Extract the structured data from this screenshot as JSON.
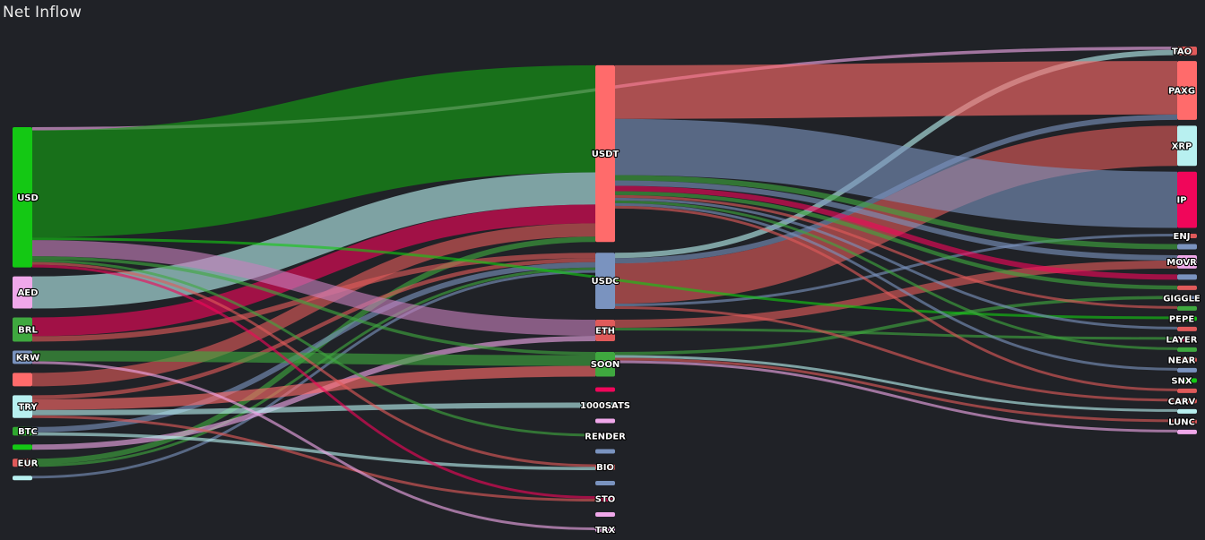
{
  "chart_title": "Net Inflow",
  "chart_data": {
    "type": "sankey",
    "title": "Net Inflow",
    "nodes": [
      {
        "id": "USD",
        "label": "USD",
        "column": 0,
        "color": "#14c814"
      },
      {
        "id": "AED",
        "label": "AED",
        "column": 0,
        "color": "#f0a8ea"
      },
      {
        "id": "BRL",
        "label": "BRL",
        "column": 0,
        "color": "#3fa83f"
      },
      {
        "id": "KRW",
        "label": "KRW",
        "column": 0,
        "color": "#7a93bf"
      },
      {
        "id": "F5",
        "label": "",
        "column": 0,
        "color": "#ff6b6b"
      },
      {
        "id": "TRY",
        "label": "TRY",
        "column": 0,
        "color": "#b8f0f0"
      },
      {
        "id": "BTC",
        "label": "BTC",
        "column": 0,
        "color": "#2fa82f"
      },
      {
        "id": "F8",
        "label": "",
        "column": 0,
        "color": "#14c814"
      },
      {
        "id": "EUR",
        "label": "EUR",
        "column": 0,
        "color": "#e05a5a"
      },
      {
        "id": "F10",
        "label": "",
        "column": 0,
        "color": "#b8f0f0"
      },
      {
        "id": "USDT",
        "label": "USDT",
        "column": 1,
        "color": "#ff6b6b"
      },
      {
        "id": "USDC",
        "label": "USDC",
        "column": 1,
        "color": "#7a93bf"
      },
      {
        "id": "ETH",
        "label": "ETH",
        "column": 1,
        "color": "#e05a5a"
      },
      {
        "id": "SOON",
        "label": "SOON",
        "column": 1,
        "color": "#3fa83f"
      },
      {
        "id": "M5",
        "label": "",
        "column": 1,
        "color": "#f0065a"
      },
      {
        "id": "1000SATS",
        "label": "1000SATS",
        "column": 1,
        "color": "#b8f0f0"
      },
      {
        "id": "M7",
        "label": "",
        "column": 1,
        "color": "#f0a8ea"
      },
      {
        "id": "RENDER",
        "label": "RENDER",
        "column": 1,
        "color": "#3fa83f"
      },
      {
        "id": "M9",
        "label": "",
        "column": 1,
        "color": "#7a93bf"
      },
      {
        "id": "BIO",
        "label": "BIO",
        "column": 1,
        "color": "#e05a5a"
      },
      {
        "id": "M11",
        "label": "",
        "column": 1,
        "color": "#7a93bf"
      },
      {
        "id": "STO",
        "label": "STO",
        "column": 1,
        "color": "#f0065a"
      },
      {
        "id": "M13",
        "label": "",
        "column": 1,
        "color": "#f0a8ea"
      },
      {
        "id": "TRX",
        "label": "TRX",
        "column": 1,
        "color": "#f0a8ea"
      },
      {
        "id": "TAO",
        "label": "TAO",
        "column": 2,
        "color": "#e05a5a"
      },
      {
        "id": "PAXG",
        "label": "PAXG",
        "column": 2,
        "color": "#ff6b6b"
      },
      {
        "id": "XRP",
        "label": "XRP",
        "column": 2,
        "color": "#b8f0f0"
      },
      {
        "id": "IP",
        "label": "IP",
        "column": 2,
        "color": "#f0065a"
      },
      {
        "id": "ENJ",
        "label": "ENJ",
        "column": 2,
        "color": "#e05a5a"
      },
      {
        "id": "R6",
        "label": "",
        "column": 2,
        "color": "#7a93bf"
      },
      {
        "id": "MOVR",
        "label": "MOVR",
        "column": 2,
        "color": "#f0a8ea"
      },
      {
        "id": "R8",
        "label": "",
        "column": 2,
        "color": "#7a93bf"
      },
      {
        "id": "R9",
        "label": "",
        "column": 2,
        "color": "#e05a5a"
      },
      {
        "id": "GIGGLE",
        "label": "GIGGLE",
        "column": 2,
        "color": "#7a93bf"
      },
      {
        "id": "R11",
        "label": "",
        "column": 2,
        "color": "#3fa83f"
      },
      {
        "id": "PEPE",
        "label": "PEPE",
        "column": 2,
        "color": "#14c814"
      },
      {
        "id": "R13",
        "label": "",
        "column": 2,
        "color": "#e05a5a"
      },
      {
        "id": "LAYER",
        "label": "LAYER",
        "column": 2,
        "color": "#f0065a"
      },
      {
        "id": "R15",
        "label": "",
        "column": 2,
        "color": "#3fa83f"
      },
      {
        "id": "NEAR",
        "label": "NEAR",
        "column": 2,
        "color": "#e05a5a"
      },
      {
        "id": "R17",
        "label": "",
        "column": 2,
        "color": "#7a93bf"
      },
      {
        "id": "SNX",
        "label": "SNX",
        "column": 2,
        "color": "#14c814"
      },
      {
        "id": "R19",
        "label": "",
        "column": 2,
        "color": "#e05a5a"
      },
      {
        "id": "CARV",
        "label": "CARV",
        "column": 2,
        "color": "#e05a5a"
      },
      {
        "id": "R21",
        "label": "",
        "column": 2,
        "color": "#b8f0f0"
      },
      {
        "id": "LUNC",
        "label": "LUNC",
        "column": 2,
        "color": "#e05a5a"
      },
      {
        "id": "R23",
        "label": "",
        "column": 2,
        "color": "#f0a8ea"
      }
    ],
    "links": [
      {
        "source": "USD",
        "target": "USDT",
        "value": 40,
        "color": "#14a014"
      },
      {
        "source": "USD",
        "target": "ETH",
        "value": 6,
        "color": "#c77fbd"
      },
      {
        "source": "USD",
        "target": "TAO",
        "value": 1.2,
        "color": "#f0a8ea"
      },
      {
        "source": "USD",
        "target": "SOON",
        "value": 1.2,
        "color": "#3fa83f"
      },
      {
        "source": "USD",
        "target": "STO",
        "value": 1.0,
        "color": "#f0065a"
      },
      {
        "source": "USD",
        "target": "RENDER",
        "value": 1.0,
        "color": "#3fa83f"
      },
      {
        "source": "USD",
        "target": "BIO",
        "value": 1.0,
        "color": "#e05a5a"
      },
      {
        "source": "USD",
        "target": "PEPE",
        "value": 1.0,
        "color": "#14c814"
      },
      {
        "source": "AED",
        "target": "USDT",
        "value": 12,
        "color": "#b8f0f0"
      },
      {
        "source": "BRL",
        "target": "USDT",
        "value": 7,
        "color": "#f0065a"
      },
      {
        "source": "BRL",
        "target": "USDC",
        "value": 2,
        "color": "#e05a5a"
      },
      {
        "source": "KRW",
        "target": "SOON",
        "value": 4,
        "color": "#3fa83f"
      },
      {
        "source": "KRW",
        "target": "TRX",
        "value": 1,
        "color": "#f0a8ea"
      },
      {
        "source": "F5",
        "target": "USDT",
        "value": 5,
        "color": "#e05a5a"
      },
      {
        "source": "TRY",
        "target": "SOON",
        "value": 4,
        "color": "#ff6b6b"
      },
      {
        "source": "TRY",
        "target": "1000SATS",
        "value": 2,
        "color": "#b8f0f0"
      },
      {
        "source": "TRY",
        "target": "USDC",
        "value": 1.5,
        "color": "#e05a5a"
      },
      {
        "source": "TRY",
        "target": "STO",
        "value": 1,
        "color": "#e05a5a"
      },
      {
        "source": "BTC",
        "target": "USDC",
        "value": 2,
        "color": "#7a93bf"
      },
      {
        "source": "BTC",
        "target": "BIO",
        "value": 1.2,
        "color": "#b8f0f0"
      },
      {
        "source": "F8",
        "target": "ETH",
        "value": 2,
        "color": "#f0a8ea"
      },
      {
        "source": "EUR",
        "target": "USDT",
        "value": 2,
        "color": "#3fa83f"
      },
      {
        "source": "EUR",
        "target": "USDC",
        "value": 1,
        "color": "#3fa83f"
      },
      {
        "source": "F10",
        "target": "USDC",
        "value": 1,
        "color": "#7a93bf"
      },
      {
        "source": "USDT",
        "target": "PAXG",
        "value": 20,
        "color": "#ff6b6b"
      },
      {
        "source": "USDT",
        "target": "IP",
        "value": 21,
        "color": "#7a93bf"
      },
      {
        "source": "USDT",
        "target": "R6",
        "value": 2,
        "color": "#3fa83f"
      },
      {
        "source": "USDT",
        "target": "MOVR",
        "value": 2,
        "color": "#7a93bf"
      },
      {
        "source": "USDT",
        "target": "R8",
        "value": 2,
        "color": "#f0065a"
      },
      {
        "source": "USDT",
        "target": "R9",
        "value": 1.5,
        "color": "#3fa83f"
      },
      {
        "source": "USDT",
        "target": "R11",
        "value": 1,
        "color": "#e05a5a"
      },
      {
        "source": "USDT",
        "target": "R13",
        "value": 1,
        "color": "#7a93bf"
      },
      {
        "source": "USDT",
        "target": "R15",
        "value": 1,
        "color": "#3fa83f"
      },
      {
        "source": "USDT",
        "target": "R17",
        "value": 1,
        "color": "#7a93bf"
      },
      {
        "source": "USDT",
        "target": "R19",
        "value": 1,
        "color": "#e05a5a"
      },
      {
        "source": "USDC",
        "target": "XRP",
        "value": 15,
        "color": "#e05a5a"
      },
      {
        "source": "USDC",
        "target": "TAO",
        "value": 2,
        "color": "#b8f0f0"
      },
      {
        "source": "USDC",
        "target": "PAXG",
        "value": 2,
        "color": "#7a93bf"
      },
      {
        "source": "USDC",
        "target": "ENJ",
        "value": 1,
        "color": "#7a93bf"
      },
      {
        "source": "USDC",
        "target": "CARV",
        "value": 1,
        "color": "#e05a5a"
      },
      {
        "source": "ETH",
        "target": "MOVR",
        "value": 3,
        "color": "#e05a5a"
      },
      {
        "source": "ETH",
        "target": "LAYER",
        "value": 1,
        "color": "#3fa83f"
      },
      {
        "source": "SOON",
        "target": "GIGGLE",
        "value": 1.2,
        "color": "#3fa83f"
      },
      {
        "source": "SOON",
        "target": "R21",
        "value": 1,
        "color": "#b8f0f0"
      },
      {
        "source": "SOON",
        "target": "R23",
        "value": 1,
        "color": "#f0a8ea"
      },
      {
        "source": "SOON",
        "target": "LUNC",
        "value": 1,
        "color": "#e05a5a"
      }
    ]
  }
}
